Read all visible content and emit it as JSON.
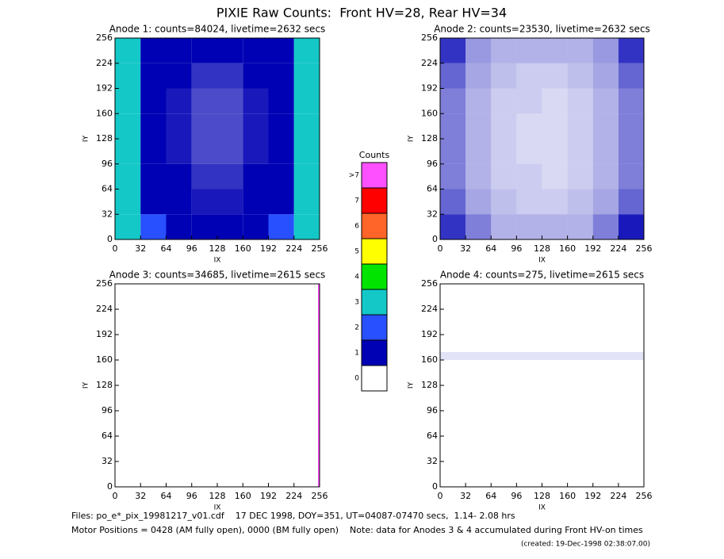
{
  "title": "PIXIE Raw Counts:  Front HV=28, Rear HV=34",
  "colorbar": {
    "title": "Counts",
    "levels": [
      0,
      1,
      2,
      3,
      4,
      5,
      6,
      7,
      {
        "value": 8,
        "label": ">7"
      }
    ],
    "colors": [
      "#ffffff",
      "#0000b4",
      "#2850ff",
      "#14c8c8",
      "#00e400",
      "#ffff00",
      "#ff6428",
      "#ff0000",
      "#ff50ff"
    ]
  },
  "chart_data": [
    {
      "type": "heatmap",
      "title": "Anode 1: counts=84024, livetime=2632 secs",
      "x_label": "IX",
      "y_label": "IY",
      "xlim": [
        0,
        256
      ],
      "ylim": [
        0,
        256
      ],
      "xticks": [
        0,
        32,
        64,
        96,
        128,
        160,
        192,
        224,
        256
      ],
      "yticks": [
        0,
        32,
        64,
        96,
        128,
        160,
        192,
        224,
        256
      ],
      "x_edges": [
        0,
        32,
        64,
        96,
        128,
        160,
        192,
        224,
        256
      ],
      "y_edges": [
        0,
        32,
        64,
        96,
        128,
        160,
        192,
        224,
        256
      ],
      "z": [
        [
          3.5,
          2,
          1.4,
          1.1,
          1.1,
          1.4,
          2,
          3.5
        ],
        [
          3.2,
          1.6,
          1.1,
          0.9,
          0.9,
          1.1,
          1.6,
          3.2
        ],
        [
          3,
          1.4,
          1,
          0.8,
          0.8,
          1,
          1.4,
          3
        ],
        [
          3,
          1.3,
          0.9,
          0.7,
          0.7,
          0.9,
          1.3,
          3
        ],
        [
          3.2,
          1.4,
          0.9,
          0.7,
          0.7,
          0.9,
          1.4,
          3.2
        ],
        [
          3,
          1.4,
          0.9,
          0.7,
          0.7,
          0.9,
          1.4,
          3
        ],
        [
          3,
          1.5,
          1,
          0.8,
          0.8,
          1,
          1.5,
          3
        ],
        [
          3.5,
          1.8,
          1.2,
          1,
          1,
          1.2,
          1.8,
          3.5
        ]
      ]
    },
    {
      "type": "heatmap",
      "title": "Anode 2: counts=23530, livetime=2632 secs",
      "x_label": "IX",
      "y_label": "IY",
      "xlim": [
        0,
        256
      ],
      "ylim": [
        0,
        256
      ],
      "xticks": [
        0,
        32,
        64,
        96,
        128,
        160,
        192,
        224,
        256
      ],
      "yticks": [
        0,
        32,
        64,
        96,
        128,
        160,
        192,
        224,
        256
      ],
      "x_edges": [
        0,
        32,
        64,
        96,
        128,
        160,
        192,
        224,
        256
      ],
      "y_edges": [
        0,
        32,
        64,
        96,
        128,
        160,
        192,
        224,
        256
      ],
      "z": [
        [
          0.8,
          0.5,
          0.3,
          0.3,
          0.3,
          0.3,
          0.5,
          0.9
        ],
        [
          0.6,
          0.35,
          0.25,
          0.2,
          0.2,
          0.25,
          0.35,
          0.6
        ],
        [
          0.5,
          0.3,
          0.2,
          0.2,
          0.15,
          0.2,
          0.3,
          0.5
        ],
        [
          0.5,
          0.3,
          0.2,
          0.15,
          0.15,
          0.2,
          0.3,
          0.5
        ],
        [
          0.5,
          0.3,
          0.2,
          0.15,
          0.15,
          0.2,
          0.3,
          0.5
        ],
        [
          0.5,
          0.3,
          0.2,
          0.2,
          0.15,
          0.2,
          0.3,
          0.5
        ],
        [
          0.6,
          0.35,
          0.25,
          0.2,
          0.2,
          0.25,
          0.35,
          0.6
        ],
        [
          0.8,
          0.4,
          0.3,
          0.3,
          0.3,
          0.3,
          0.4,
          0.8
        ]
      ]
    },
    {
      "type": "heatmap",
      "title": "Anode 3: counts=34685, livetime=2615 secs",
      "x_label": "IX",
      "y_label": "IY",
      "xlim": [
        0,
        256
      ],
      "ylim": [
        0,
        256
      ],
      "xticks": [
        0,
        32,
        64,
        96,
        128,
        160,
        192,
        224,
        256
      ],
      "yticks": [
        0,
        32,
        64,
        96,
        128,
        160,
        192,
        224,
        256
      ],
      "x_edges": [
        0,
        254,
        256
      ],
      "y_edges": [
        0,
        256
      ],
      "z": [
        [
          0,
          68
        ]
      ]
    },
    {
      "type": "heatmap",
      "title": "Anode 4: counts=275, livetime=2615 secs",
      "x_label": "IX",
      "y_label": "IY",
      "xlim": [
        0,
        256
      ],
      "ylim": [
        0,
        256
      ],
      "xticks": [
        0,
        32,
        64,
        96,
        128,
        160,
        192,
        224,
        256
      ],
      "yticks": [
        0,
        32,
        64,
        96,
        128,
        160,
        192,
        224,
        256
      ],
      "x_edges": [
        0,
        256
      ],
      "y_edges": [
        0,
        160,
        170,
        256
      ],
      "z": [
        [
          0
        ],
        [
          0.11
        ],
        [
          0
        ]
      ]
    }
  ],
  "footer": [
    "Files: po_e*_pix_19981217_v01.cdf    17 DEC 1998, DOY=351, UT=04087-07470 secs,  1.14- 2.08 hrs",
    "Motor Positions = 0428 (AM fully open), 0000 (BM fully open)    Note: data for Anodes 3 & 4 accumulated during Front HV-on times",
    "(created: 19-Dec-1998 02:38:07.00)"
  ]
}
